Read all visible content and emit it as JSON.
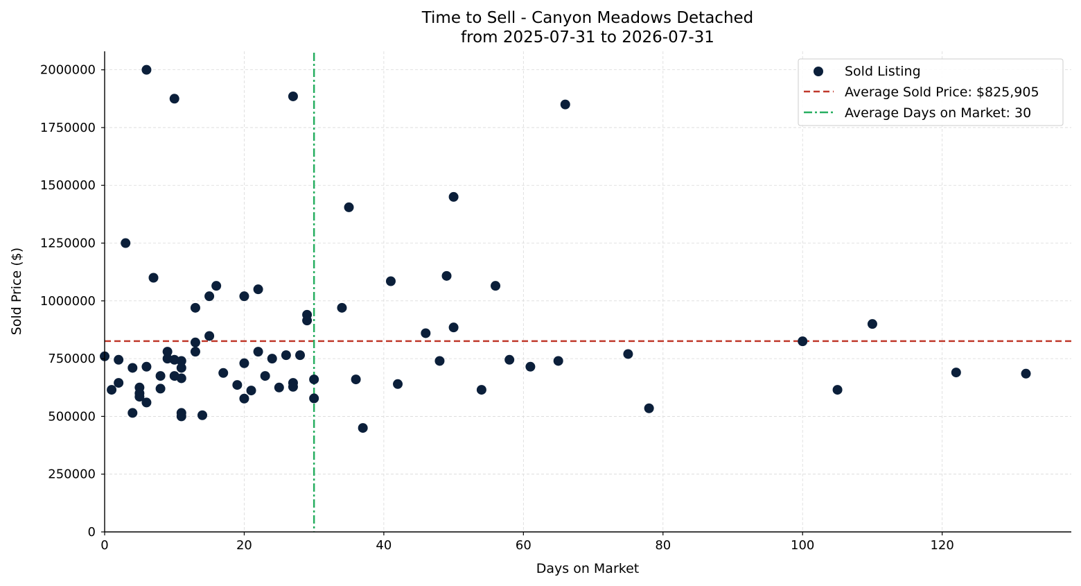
{
  "chart_data": {
    "type": "scatter",
    "title": "Time to Sell - Canyon Meadows Detached",
    "subtitle": "from 2025-07-31 to 2026-07-31",
    "xlabel": "Days on Market",
    "ylabel": "Sold Price ($)",
    "xlim": [
      0,
      138.5
    ],
    "ylim": [
      0,
      2080000
    ],
    "xticks": [
      0,
      20,
      40,
      60,
      80,
      100,
      120
    ],
    "yticks": [
      0,
      250000,
      500000,
      750000,
      1000000,
      1250000,
      1500000,
      1750000,
      2000000
    ],
    "xtick_labels": [
      "0",
      "20",
      "40",
      "60",
      "80",
      "100",
      "120"
    ],
    "ytick_labels": [
      "0",
      "250000",
      "500000",
      "750000",
      "1000000",
      "1250000",
      "1500000",
      "1750000",
      "2000000"
    ],
    "grid": true,
    "legend_position": "top-right",
    "series": [
      {
        "name": "Sold Listing",
        "color": "#0b1f3a",
        "points": [
          [
            0,
            760000
          ],
          [
            1,
            615000
          ],
          [
            2,
            745000
          ],
          [
            2,
            645000
          ],
          [
            3,
            1250000
          ],
          [
            4,
            710000
          ],
          [
            4,
            515000
          ],
          [
            5,
            625000
          ],
          [
            5,
            600000
          ],
          [
            5,
            585000
          ],
          [
            6,
            2000000
          ],
          [
            6,
            715000
          ],
          [
            6,
            560000
          ],
          [
            7,
            1100000
          ],
          [
            8,
            675000
          ],
          [
            8,
            620000
          ],
          [
            9,
            780000
          ],
          [
            9,
            750000
          ],
          [
            10,
            1875000
          ],
          [
            10,
            745000
          ],
          [
            10,
            675000
          ],
          [
            11,
            740000
          ],
          [
            11,
            710000
          ],
          [
            11,
            665000
          ],
          [
            11,
            515000
          ],
          [
            11,
            500000
          ],
          [
            13,
            970000
          ],
          [
            13,
            820000
          ],
          [
            13,
            780000
          ],
          [
            14,
            505000
          ],
          [
            15,
            1020000
          ],
          [
            15,
            848000
          ],
          [
            16,
            1065000
          ],
          [
            17,
            688000
          ],
          [
            19,
            636000
          ],
          [
            20,
            1020000
          ],
          [
            20,
            730000
          ],
          [
            20,
            577000
          ],
          [
            21,
            612000
          ],
          [
            22,
            1050000
          ],
          [
            22,
            780000
          ],
          [
            23,
            675000
          ],
          [
            24,
            750000
          ],
          [
            25,
            625000
          ],
          [
            26,
            765000
          ],
          [
            27,
            1885000
          ],
          [
            27,
            645000
          ],
          [
            27,
            628000
          ],
          [
            28,
            765000
          ],
          [
            29,
            940000
          ],
          [
            29,
            915000
          ],
          [
            30,
            660000
          ],
          [
            30,
            578000
          ],
          [
            34,
            970000
          ],
          [
            35,
            1405000
          ],
          [
            36,
            660000
          ],
          [
            37,
            450000
          ],
          [
            41,
            1085000
          ],
          [
            42,
            640000
          ],
          [
            46,
            860000
          ],
          [
            48,
            740000
          ],
          [
            49,
            1108000
          ],
          [
            50,
            1450000
          ],
          [
            50,
            885000
          ],
          [
            54,
            615000
          ],
          [
            56,
            1065000
          ],
          [
            58,
            745000
          ],
          [
            61,
            715000
          ],
          [
            65,
            740000
          ],
          [
            66,
            1850000
          ],
          [
            75,
            770000
          ],
          [
            78,
            535000
          ],
          [
            100,
            825000
          ],
          [
            105,
            615000
          ],
          [
            110,
            900000
          ],
          [
            122,
            690000
          ],
          [
            132,
            685000
          ]
        ]
      }
    ],
    "reference_lines": [
      {
        "name": "Average Sold Price: $825,905",
        "orientation": "horizontal",
        "value": 825905,
        "color": "#c0392b",
        "style": "dashed"
      },
      {
        "name": "Average Days on Market: 30",
        "orientation": "vertical",
        "value": 30,
        "color": "#27ae60",
        "style": "dashdot"
      }
    ]
  }
}
